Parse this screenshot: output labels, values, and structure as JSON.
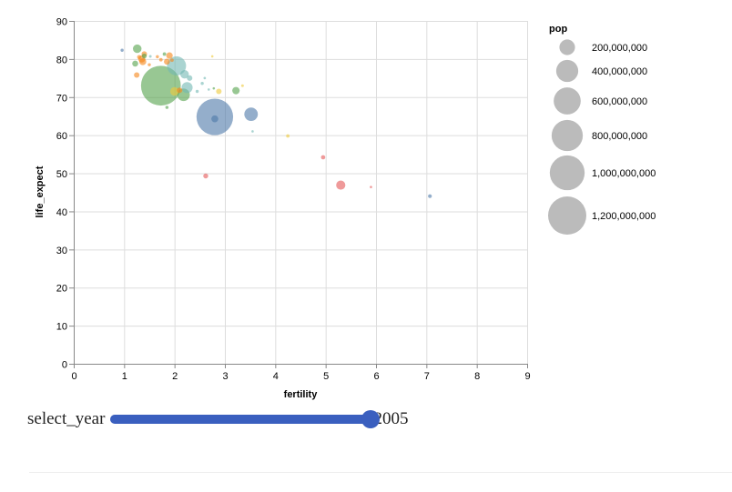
{
  "chart_data": {
    "type": "scatter",
    "xlabel": "fertility",
    "ylabel": "life_expect",
    "xlim": [
      0,
      9
    ],
    "ylim": [
      0,
      90
    ],
    "x_ticks": [
      "0",
      "1",
      "2",
      "3",
      "4",
      "5",
      "6",
      "7",
      "8",
      "9"
    ],
    "y_ticks": [
      "0",
      "10",
      "20",
      "30",
      "40",
      "50",
      "60",
      "70",
      "80",
      "90"
    ],
    "grid": true,
    "legend_position": "right",
    "size_legend": {
      "title": "pop",
      "entries": [
        {
          "label": "200,000,000",
          "value": 200000000
        },
        {
          "label": "400,000,000",
          "value": 400000000
        },
        {
          "label": "600,000,000",
          "value": 600000000
        },
        {
          "label": "800,000,000",
          "value": 800000000
        },
        {
          "label": "1,000,000,000",
          "value": 1000000000
        },
        {
          "label": "1,200,000,000",
          "value": 1200000000
        }
      ],
      "color": "#bbbbbb"
    },
    "colors": {
      "blue": "#4c78a8",
      "orange": "#f58518",
      "red": "#e45756",
      "teal": "#72b7b2",
      "green": "#54a24b",
      "yellow": "#eeca3b"
    },
    "points": [
      {
        "x": 0.96,
        "y": 82.3,
        "pop": 8000000,
        "color": "blue"
      },
      {
        "x": 1.26,
        "y": 82.7,
        "pop": 60000000,
        "color": "green"
      },
      {
        "x": 1.22,
        "y": 78.8,
        "pop": 30000000,
        "color": "green"
      },
      {
        "x": 1.4,
        "y": 80.8,
        "pop": 20000000,
        "color": "green"
      },
      {
        "x": 1.52,
        "y": 80.7,
        "pop": 6000000,
        "color": "teal"
      },
      {
        "x": 1.35,
        "y": 80.0,
        "pop": 40000000,
        "color": "orange"
      },
      {
        "x": 1.4,
        "y": 81.3,
        "pop": 25000000,
        "color": "orange"
      },
      {
        "x": 1.3,
        "y": 80.5,
        "pop": 15000000,
        "color": "orange"
      },
      {
        "x": 1.37,
        "y": 79.3,
        "pop": 40000000,
        "color": "orange"
      },
      {
        "x": 1.5,
        "y": 78.5,
        "pop": 8000000,
        "color": "orange"
      },
      {
        "x": 1.25,
        "y": 75.8,
        "pop": 25000000,
        "color": "orange"
      },
      {
        "x": 1.66,
        "y": 80.6,
        "pop": 8000000,
        "color": "orange"
      },
      {
        "x": 1.73,
        "y": 79.8,
        "pop": 10000000,
        "color": "orange"
      },
      {
        "x": 1.8,
        "y": 81.3,
        "pop": 10000000,
        "color": "green"
      },
      {
        "x": 1.85,
        "y": 79.3,
        "pop": 30000000,
        "color": "orange"
      },
      {
        "x": 1.95,
        "y": 79.7,
        "pop": 10000000,
        "color": "orange"
      },
      {
        "x": 1.9,
        "y": 80.9,
        "pop": 35000000,
        "color": "orange"
      },
      {
        "x": 2.04,
        "y": 78.2,
        "pop": 300000000,
        "color": "teal"
      },
      {
        "x": 2.2,
        "y": 76.0,
        "pop": 60000000,
        "color": "teal"
      },
      {
        "x": 2.3,
        "y": 75.0,
        "pop": 25000000,
        "color": "teal"
      },
      {
        "x": 1.73,
        "y": 73.0,
        "pop": 1300000000,
        "color": "green"
      },
      {
        "x": 1.85,
        "y": 67.3,
        "pop": 8000000,
        "color": "green"
      },
      {
        "x": 2.1,
        "y": 71.8,
        "pop": 25000000,
        "color": "orange"
      },
      {
        "x": 2.18,
        "y": 70.6,
        "pop": 130000000,
        "color": "green"
      },
      {
        "x": 2.25,
        "y": 72.5,
        "pop": 100000000,
        "color": "teal"
      },
      {
        "x": 2.0,
        "y": 71.5,
        "pop": 60000000,
        "color": "yellow"
      },
      {
        "x": 2.45,
        "y": 71.5,
        "pop": 8000000,
        "color": "teal"
      },
      {
        "x": 2.55,
        "y": 73.6,
        "pop": 8000000,
        "color": "teal"
      },
      {
        "x": 2.6,
        "y": 75.0,
        "pop": 5000000,
        "color": "teal"
      },
      {
        "x": 2.68,
        "y": 72.0,
        "pop": 3000000,
        "color": "teal"
      },
      {
        "x": 2.78,
        "y": 72.3,
        "pop": 3000000,
        "color": "green"
      },
      {
        "x": 2.75,
        "y": 80.7,
        "pop": 2000000,
        "color": "yellow"
      },
      {
        "x": 2.88,
        "y": 71.5,
        "pop": 25000000,
        "color": "yellow"
      },
      {
        "x": 2.8,
        "y": 64.8,
        "pop": 1100000000,
        "color": "blue"
      },
      {
        "x": 2.8,
        "y": 64.3,
        "pop": 40000000,
        "color": "blue"
      },
      {
        "x": 3.22,
        "y": 71.7,
        "pop": 45000000,
        "color": "green"
      },
      {
        "x": 3.35,
        "y": 73.0,
        "pop": 6000000,
        "color": "yellow"
      },
      {
        "x": 3.52,
        "y": 65.5,
        "pop": 150000000,
        "color": "blue"
      },
      {
        "x": 3.55,
        "y": 61.0,
        "pop": 3000000,
        "color": "teal"
      },
      {
        "x": 2.62,
        "y": 49.3,
        "pop": 20000000,
        "color": "red"
      },
      {
        "x": 4.25,
        "y": 59.8,
        "pop": 10000000,
        "color": "yellow"
      },
      {
        "x": 4.95,
        "y": 54.2,
        "pop": 15000000,
        "color": "red"
      },
      {
        "x": 5.3,
        "y": 46.9,
        "pop": 70000000,
        "color": "red"
      },
      {
        "x": 5.9,
        "y": 46.4,
        "pop": 3000000,
        "color": "red"
      },
      {
        "x": 7.07,
        "y": 44.0,
        "pop": 12000000,
        "color": "blue"
      }
    ]
  },
  "slider": {
    "label": "select_year",
    "value": "2005",
    "fraction": 1.0
  }
}
